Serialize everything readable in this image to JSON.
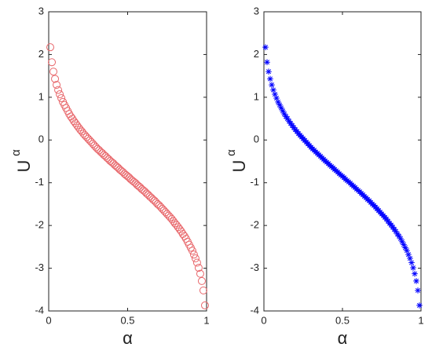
{
  "chart_data": [
    {
      "type": "scatter",
      "marker": "circle",
      "xlabel": "α",
      "ylabel": "U",
      "ylabel_superscript": "α",
      "xlim": [
        0,
        1
      ],
      "ylim": [
        -4,
        3
      ],
      "xticks": [
        0,
        0.5,
        1
      ],
      "yticks": [
        -4,
        -3,
        -2,
        -1,
        0,
        1,
        2,
        3
      ],
      "series": [
        {
          "color": "#e8676b",
          "x": [
            0.01,
            0.02,
            0.03,
            0.04,
            0.05,
            0.06,
            0.07,
            0.08,
            0.09,
            0.1,
            0.11,
            0.12,
            0.13,
            0.14,
            0.15,
            0.16,
            0.17,
            0.18,
            0.19,
            0.2,
            0.21,
            0.22,
            0.23,
            0.24,
            0.25,
            0.26,
            0.27,
            0.28,
            0.29,
            0.3,
            0.31,
            0.32,
            0.33,
            0.34,
            0.35,
            0.36,
            0.37,
            0.38,
            0.39,
            0.4,
            0.41,
            0.42,
            0.43,
            0.44,
            0.45,
            0.46,
            0.47,
            0.48,
            0.49,
            0.5,
            0.51,
            0.52,
            0.53,
            0.54,
            0.55,
            0.56,
            0.57,
            0.58,
            0.59,
            0.6,
            0.61,
            0.62,
            0.63,
            0.64,
            0.65,
            0.66,
            0.67,
            0.68,
            0.69,
            0.7,
            0.71,
            0.72,
            0.73,
            0.74,
            0.75,
            0.76,
            0.77,
            0.78,
            0.79,
            0.8,
            0.81,
            0.82,
            0.83,
            0.84,
            0.85,
            0.86,
            0.87,
            0.88,
            0.89,
            0.9,
            0.91,
            0.92,
            0.93,
            0.94,
            0.95,
            0.96,
            0.97,
            0.98,
            0.99
          ],
          "values": [
            2.17,
            1.82,
            1.6,
            1.43,
            1.29,
            1.17,
            1.07,
            0.98,
            0.89,
            0.82,
            0.75,
            0.68,
            0.61,
            0.55,
            0.5,
            0.44,
            0.39,
            0.34,
            0.29,
            0.24,
            0.2,
            0.15,
            0.11,
            0.07,
            0.03,
            -0.01,
            -0.05,
            -0.09,
            -0.13,
            -0.17,
            -0.21,
            -0.24,
            -0.28,
            -0.31,
            -0.35,
            -0.38,
            -0.42,
            -0.45,
            -0.49,
            -0.52,
            -0.55,
            -0.59,
            -0.62,
            -0.65,
            -0.69,
            -0.72,
            -0.75,
            -0.79,
            -0.82,
            -0.85,
            -0.88,
            -0.92,
            -0.95,
            -0.98,
            -1.01,
            -1.05,
            -1.08,
            -1.11,
            -1.15,
            -1.18,
            -1.21,
            -1.25,
            -1.28,
            -1.32,
            -1.35,
            -1.39,
            -1.42,
            -1.46,
            -1.5,
            -1.53,
            -1.57,
            -1.61,
            -1.65,
            -1.69,
            -1.73,
            -1.77,
            -1.81,
            -1.85,
            -1.9,
            -1.95,
            -1.99,
            -2.04,
            -2.09,
            -2.14,
            -2.2,
            -2.25,
            -2.31,
            -2.38,
            -2.45,
            -2.52,
            -2.59,
            -2.68,
            -2.77,
            -2.87,
            -2.99,
            -3.13,
            -3.3,
            -3.52,
            -3.87
          ]
        }
      ]
    },
    {
      "type": "scatter",
      "marker": "asterisk",
      "xlabel": "α",
      "ylabel": "U",
      "ylabel_superscript": "α",
      "xlim": [
        0,
        1
      ],
      "ylim": [
        -4,
        3
      ],
      "xticks": [
        0,
        0.5,
        1
      ],
      "yticks": [
        -4,
        -3,
        -2,
        -1,
        0,
        1,
        2,
        3
      ],
      "series": [
        {
          "color": "#0000ff",
          "x": [
            0.01,
            0.02,
            0.03,
            0.04,
            0.05,
            0.06,
            0.07,
            0.08,
            0.09,
            0.1,
            0.11,
            0.12,
            0.13,
            0.14,
            0.15,
            0.16,
            0.17,
            0.18,
            0.19,
            0.2,
            0.21,
            0.22,
            0.23,
            0.24,
            0.25,
            0.26,
            0.27,
            0.28,
            0.29,
            0.3,
            0.31,
            0.32,
            0.33,
            0.34,
            0.35,
            0.36,
            0.37,
            0.38,
            0.39,
            0.4,
            0.41,
            0.42,
            0.43,
            0.44,
            0.45,
            0.46,
            0.47,
            0.48,
            0.49,
            0.5,
            0.51,
            0.52,
            0.53,
            0.54,
            0.55,
            0.56,
            0.57,
            0.58,
            0.59,
            0.6,
            0.61,
            0.62,
            0.63,
            0.64,
            0.65,
            0.66,
            0.67,
            0.68,
            0.69,
            0.7,
            0.71,
            0.72,
            0.73,
            0.74,
            0.75,
            0.76,
            0.77,
            0.78,
            0.79,
            0.8,
            0.81,
            0.82,
            0.83,
            0.84,
            0.85,
            0.86,
            0.87,
            0.88,
            0.89,
            0.9,
            0.91,
            0.92,
            0.93,
            0.94,
            0.95,
            0.96,
            0.97,
            0.98,
            0.99
          ],
          "values": [
            2.17,
            1.82,
            1.6,
            1.43,
            1.29,
            1.17,
            1.07,
            0.98,
            0.89,
            0.82,
            0.75,
            0.68,
            0.61,
            0.55,
            0.5,
            0.44,
            0.39,
            0.34,
            0.29,
            0.24,
            0.2,
            0.15,
            0.11,
            0.07,
            0.03,
            -0.01,
            -0.05,
            -0.09,
            -0.13,
            -0.17,
            -0.21,
            -0.24,
            -0.28,
            -0.31,
            -0.35,
            -0.38,
            -0.42,
            -0.45,
            -0.49,
            -0.52,
            -0.55,
            -0.59,
            -0.62,
            -0.65,
            -0.69,
            -0.72,
            -0.75,
            -0.79,
            -0.82,
            -0.85,
            -0.88,
            -0.92,
            -0.95,
            -0.98,
            -1.01,
            -1.05,
            -1.08,
            -1.11,
            -1.15,
            -1.18,
            -1.21,
            -1.25,
            -1.28,
            -1.32,
            -1.35,
            -1.39,
            -1.42,
            -1.46,
            -1.5,
            -1.53,
            -1.57,
            -1.61,
            -1.65,
            -1.69,
            -1.73,
            -1.77,
            -1.81,
            -1.85,
            -1.9,
            -1.95,
            -1.99,
            -2.04,
            -2.09,
            -2.14,
            -2.2,
            -2.25,
            -2.31,
            -2.38,
            -2.45,
            -2.52,
            -2.59,
            -2.68,
            -2.77,
            -2.87,
            -2.99,
            -3.13,
            -3.3,
            -3.52,
            -3.87
          ]
        }
      ]
    }
  ]
}
